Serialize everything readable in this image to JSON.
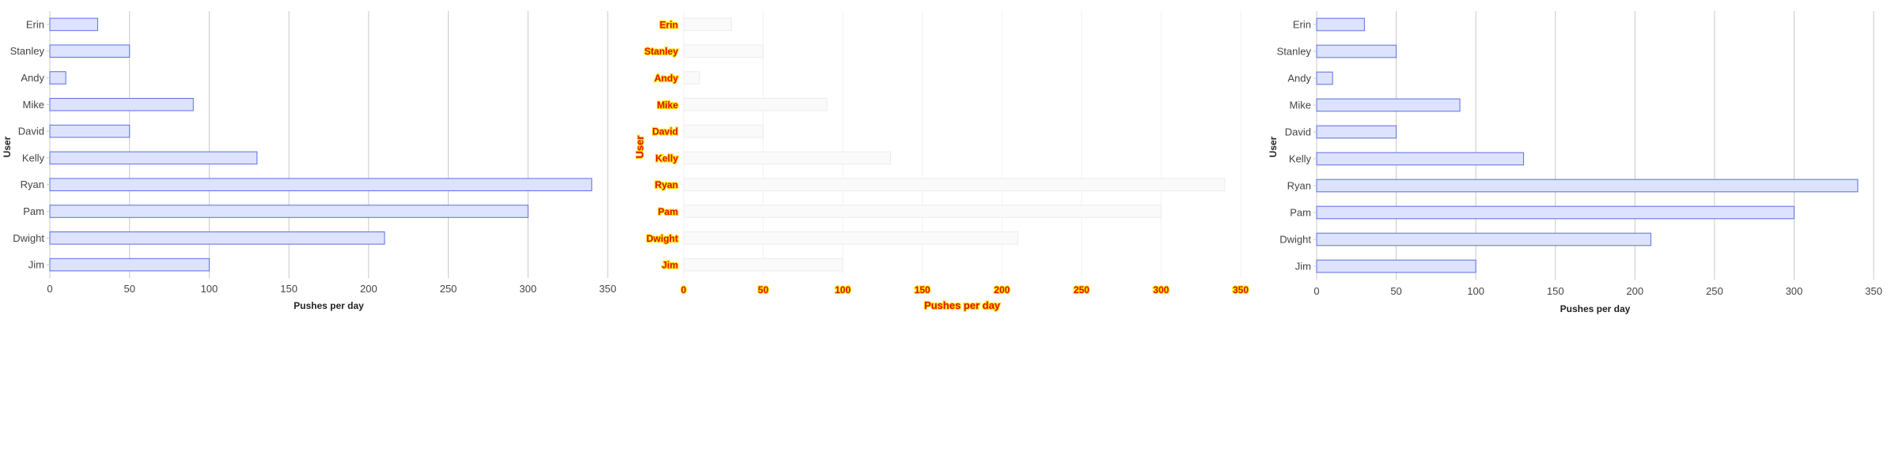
{
  "chart_data": [
    {
      "type": "bar",
      "orientation": "horizontal",
      "categories": [
        "Erin",
        "Stanley",
        "Andy",
        "Mike",
        "David",
        "Kelly",
        "Ryan",
        "Pam",
        "Dwight",
        "Jim"
      ],
      "values": [
        30,
        50,
        10,
        90,
        50,
        130,
        340,
        300,
        210,
        100
      ],
      "xlabel": "Pushes per day",
      "ylabel": "User",
      "xlim": [
        0,
        350
      ],
      "xticks": [
        "0",
        "50",
        "100",
        "150",
        "200",
        "250",
        "300",
        "350"
      ],
      "grid": true
    },
    {
      "type": "bar",
      "orientation": "horizontal",
      "categories": [
        "Erin",
        "Stanley",
        "Andy",
        "Mike",
        "David",
        "Kelly",
        "Ryan",
        "Pam",
        "Dwight",
        "Jim"
      ],
      "values": [
        30,
        50,
        10,
        90,
        50,
        130,
        340,
        300,
        210,
        100
      ],
      "xlabel": "Pushes per day",
      "ylabel": "User",
      "xlim": [
        0,
        350
      ],
      "xticks": [
        "0",
        "50",
        "100",
        "150",
        "200",
        "250",
        "300",
        "350"
      ],
      "grid": true,
      "colors": {
        "label": "#e01000",
        "label_outline": "#ffe000",
        "bar": "#fafafa"
      }
    },
    {
      "type": "bar",
      "orientation": "horizontal",
      "categories": [
        "Erin",
        "Stanley",
        "Andy",
        "Mike",
        "David",
        "Kelly",
        "Ryan",
        "Pam",
        "Dwight",
        "Jim"
      ],
      "values": [
        30,
        50,
        10,
        90,
        50,
        130,
        340,
        300,
        210,
        100
      ],
      "xlabel": "Pushes per day",
      "ylabel": "User",
      "xlim": [
        0,
        350
      ],
      "xticks": [
        "0",
        "50",
        "100",
        "150",
        "200",
        "250",
        "300",
        "350"
      ],
      "grid": true
    }
  ],
  "colors": {
    "bar_fill": "#dde3ff",
    "bar_stroke": "#5b6ee0",
    "grid": "#c8c8c8"
  }
}
